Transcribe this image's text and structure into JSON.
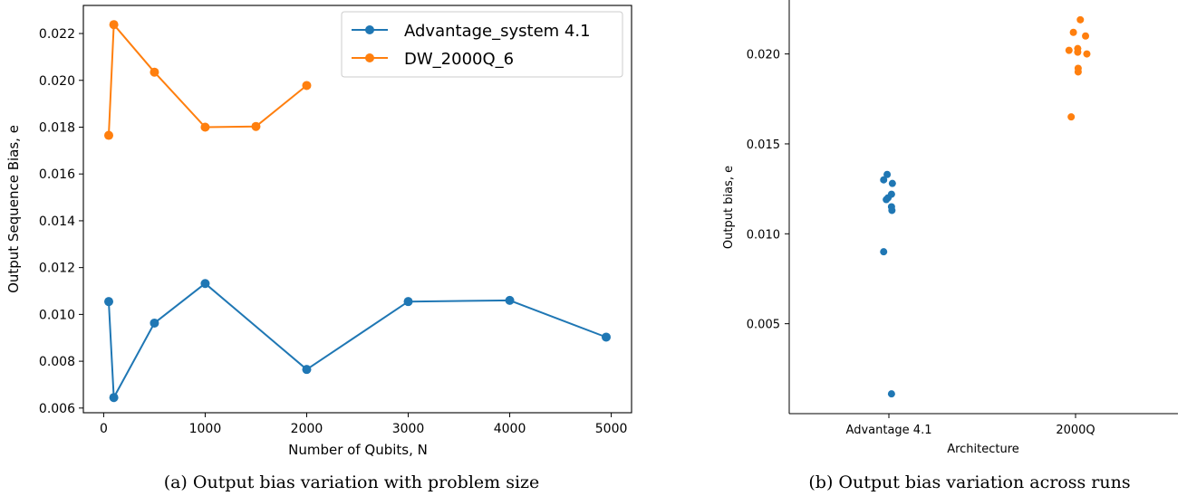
{
  "colors": {
    "blue": "#1f77b4",
    "orange": "#ff7f0e"
  },
  "chart_data": [
    {
      "type": "line",
      "title": "",
      "xlabel": "Number of Qubits, N",
      "ylabel": "Output Sequence Bias, e",
      "xlim": [
        -200,
        5200
      ],
      "ylim": [
        0.0058,
        0.0232
      ],
      "xticks": [
        0,
        1000,
        2000,
        3000,
        4000,
        5000
      ],
      "xtick_labels": [
        "0",
        "1000",
        "2000",
        "3000",
        "4000",
        "5000"
      ],
      "yticks": [
        0.006,
        0.008,
        0.01,
        0.012,
        0.014,
        0.016,
        0.018,
        0.02,
        0.022
      ],
      "ytick_labels": [
        "0.006",
        "0.008",
        "0.010",
        "0.012",
        "0.014",
        "0.016",
        "0.018",
        "0.020",
        "0.022"
      ],
      "legend": "top-right",
      "series": [
        {
          "name": "Advantage_system 4.1",
          "color": "#1f77b4",
          "x": [
            50,
            100,
            500,
            1000,
            2000,
            3000,
            4000,
            4950
          ],
          "y": [
            0.01055,
            0.00645,
            0.00963,
            0.01132,
            0.00765,
            0.01055,
            0.0106,
            0.00903
          ]
        },
        {
          "name": "DW_2000Q_6",
          "color": "#ff7f0e",
          "x": [
            50,
            100,
            500,
            1000,
            1500,
            2000
          ],
          "y": [
            0.01765,
            0.02238,
            0.02035,
            0.018,
            0.01803,
            0.01978
          ]
        }
      ],
      "caption": "(a) Output bias variation with problem size"
    },
    {
      "type": "scatter",
      "title": "",
      "xlabel": "Architecture",
      "ylabel": "Output bias, e",
      "categories": [
        "Advantage 4.1",
        "2000Q"
      ],
      "ylim": [
        0,
        0.023
      ],
      "yticks": [
        0.005,
        0.01,
        0.015,
        0.02
      ],
      "ytick_labels": [
        "0.005",
        "0.010",
        "0.015",
        "0.020"
      ],
      "series": [
        {
          "category": "Advantage 4.1",
          "color": "#1f77b4",
          "x": [
            -0.12,
            -0.04,
            0.08,
            -0.02,
            0.06,
            0.07,
            0.06,
            -0.12,
            -0.06,
            0.06
          ],
          "y": [
            0.013,
            0.0133,
            0.0128,
            0.012,
            0.0122,
            0.0113,
            0.0115,
            0.009,
            0.0119,
            0.0011
          ]
        },
        {
          "category": "2000Q",
          "color": "#ff7f0e",
          "x": [
            -0.05,
            0.11,
            -0.15,
            0.05,
            0.05,
            0.23,
            0.26,
            0.06,
            0.06,
            -0.1
          ],
          "y": [
            0.0212,
            0.0219,
            0.0202,
            0.0203,
            0.0201,
            0.021,
            0.02,
            0.0192,
            0.019,
            0.0165
          ]
        }
      ],
      "caption": "(b) Output bias variation across runs"
    }
  ]
}
